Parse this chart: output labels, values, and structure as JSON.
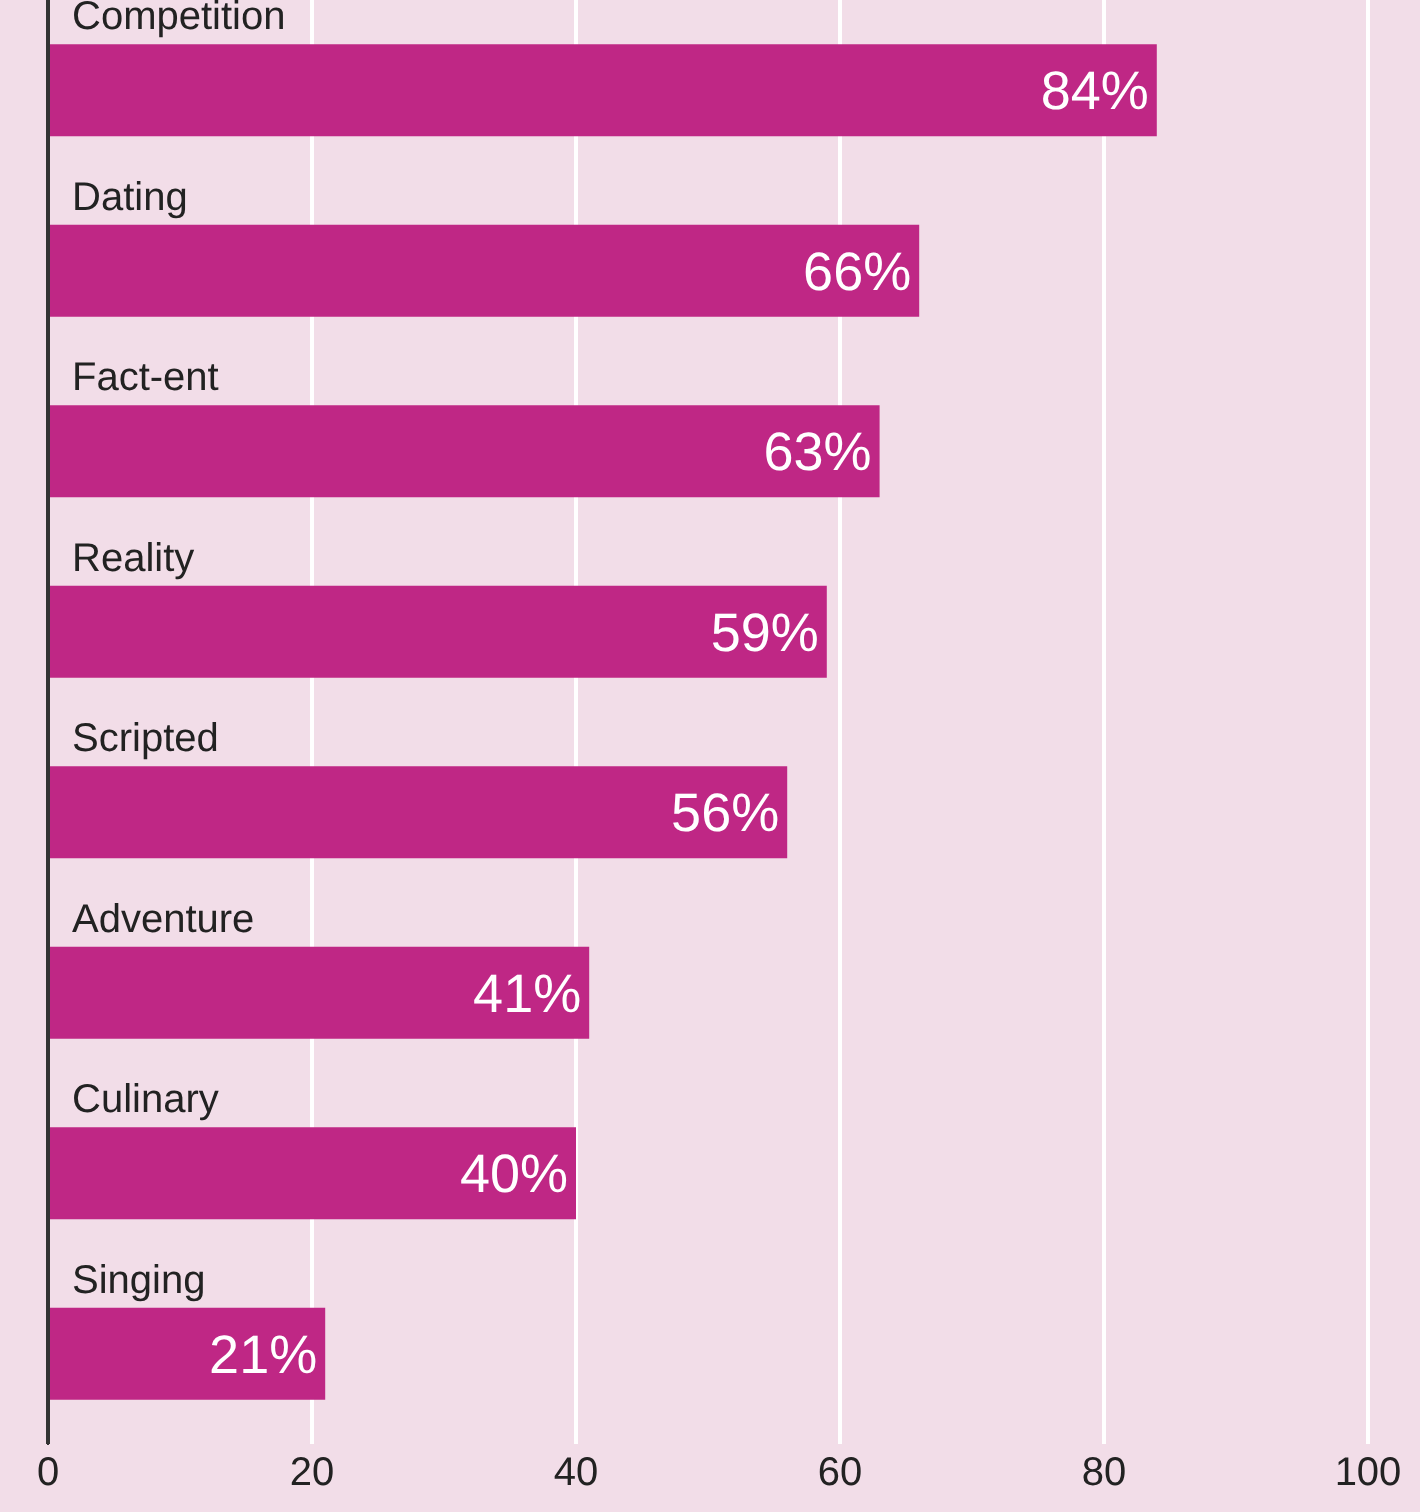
{
  "chart_data": {
    "type": "bar",
    "orientation": "horizontal",
    "categories": [
      "Competition",
      "Dating",
      "Fact-ent",
      "Reality",
      "Scripted",
      "Adventure",
      "Culinary",
      "Singing"
    ],
    "values": [
      84,
      66,
      63,
      59,
      56,
      41,
      40,
      21
    ],
    "value_labels": [
      "84%",
      "66%",
      "63%",
      "59%",
      "56%",
      "41%",
      "40%",
      "21%"
    ],
    "color": "#bf2785",
    "xlim": [
      0,
      100
    ],
    "xticks": [
      0,
      20,
      40,
      60,
      80,
      100
    ],
    "grid": "x"
  }
}
